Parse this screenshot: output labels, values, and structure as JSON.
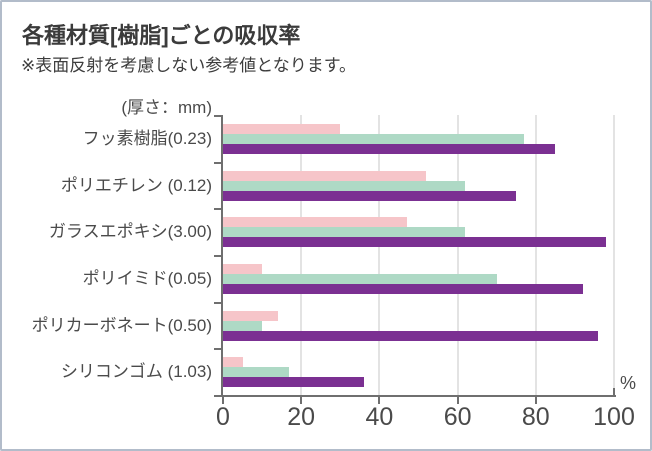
{
  "header": {
    "title": "各種材質[樹脂]ごとの吸収率",
    "note": "※表面反射を考慮しない参考値となります。"
  },
  "chart_data": {
    "type": "bar",
    "orientation": "horizontal",
    "title": "各種材質[樹脂]ごとの吸収率",
    "subtitle": "※表面反射を考慮しない参考値となります。",
    "thickness_axis_note": "(厚さ：mm)",
    "unit_label": "%",
    "categories": [
      "フッ素樹脂(0.23)",
      "ポリエチレン (0.12)",
      "ガラスエポキシ(3.00)",
      "ポリイミド(0.05)",
      "ポリカーボネート(0.50)",
      "シリコンゴム (1.03)"
    ],
    "series": [
      {
        "name": "pink",
        "color": "#f6c5c9",
        "values": [
          30,
          52,
          47,
          10,
          14,
          5
        ]
      },
      {
        "name": "mint",
        "color": "#aed9c5",
        "values": [
          77,
          62,
          62,
          70,
          10,
          17
        ]
      },
      {
        "name": "purple",
        "color": "#7b3092",
        "values": [
          85,
          75,
          98,
          92,
          96,
          36
        ]
      }
    ],
    "x_ticks": [
      0,
      20,
      40,
      60,
      80,
      100
    ],
    "xlim": [
      0,
      100
    ],
    "grid": true,
    "legend": false
  },
  "colors": {
    "axis": "#6f6f6f",
    "gridline": "#e3e3e3",
    "text": "#3d3d3d",
    "frame_border": "#b2bcca",
    "background": "#ffffff"
  }
}
